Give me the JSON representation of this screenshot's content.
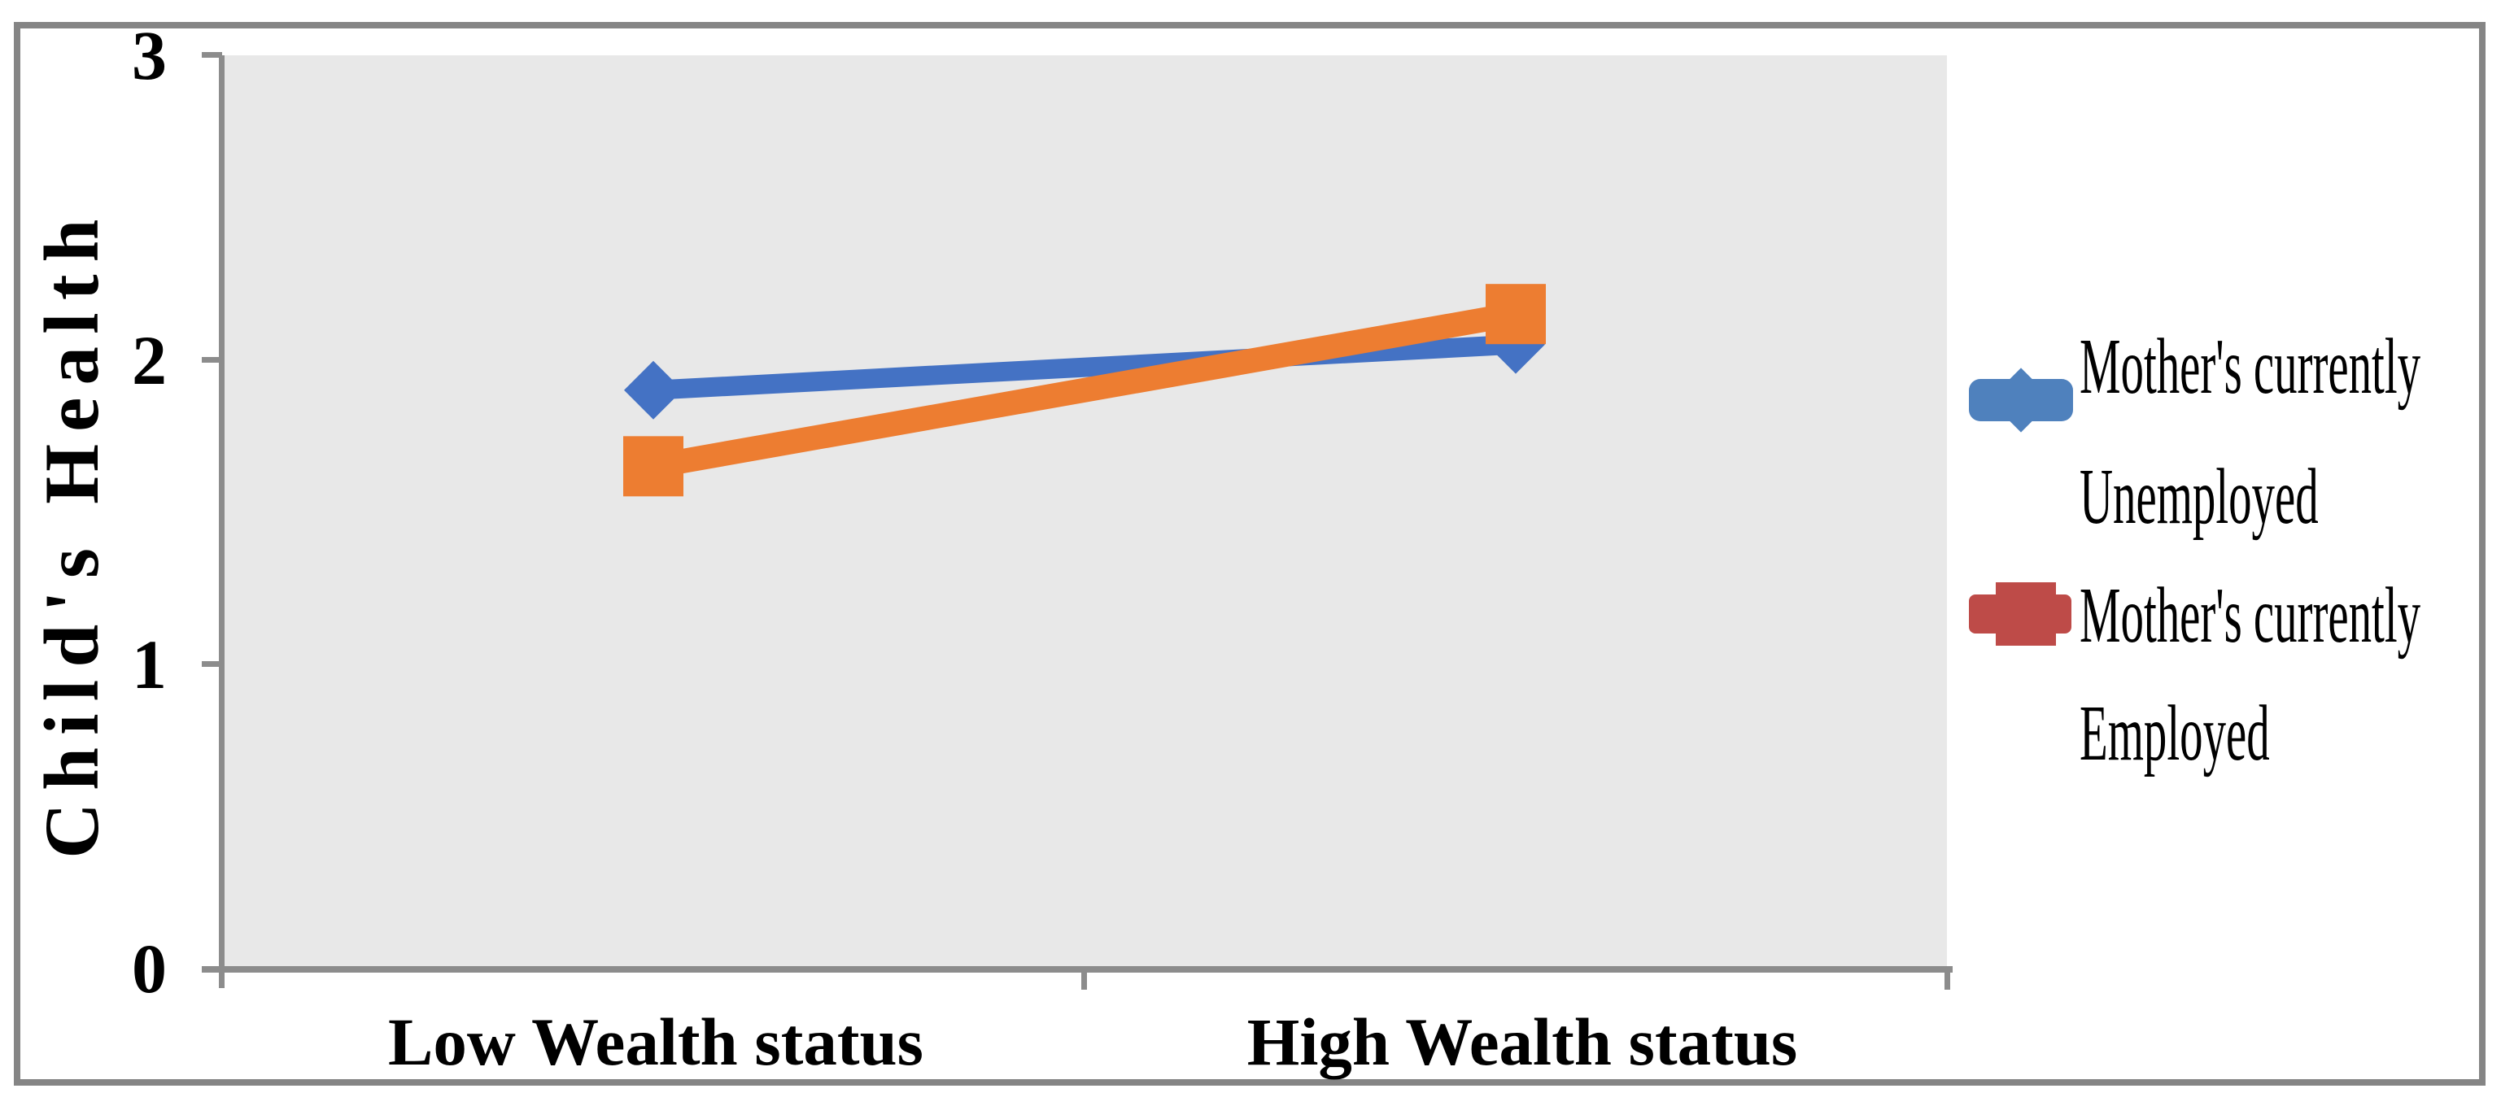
{
  "figure": {
    "background": "#ffffff",
    "border_color": "#858585"
  },
  "chart_data": {
    "type": "line",
    "categories": [
      "Low Wealth status",
      "High Wealth status"
    ],
    "series": [
      {
        "name": "Mother's currently Unemployed",
        "values": [
          1.9,
          2.05
        ],
        "line_color": "#4472C4",
        "marker": "diamond",
        "legend_color": "#4F81BD",
        "label_lines": [
          "Mother's currently",
          "Unemployed"
        ]
      },
      {
        "name": "Mother's currently Employed",
        "values": [
          1.65,
          2.15
        ],
        "line_color": "#ED7D31",
        "marker": "square",
        "legend_color": "#BE4B48",
        "label_lines": [
          "Mother's currently",
          "Employed"
        ]
      }
    ],
    "title": "",
    "xlabel": "",
    "ylabel": "Child's Health",
    "ylim": [
      0,
      3
    ],
    "y_tick_labels": [
      "3",
      "2",
      "1",
      "0"
    ],
    "grid": false,
    "legend_position": "right",
    "plot_bg": "#E8E8E8",
    "axis_color": "#8C8C8C"
  }
}
